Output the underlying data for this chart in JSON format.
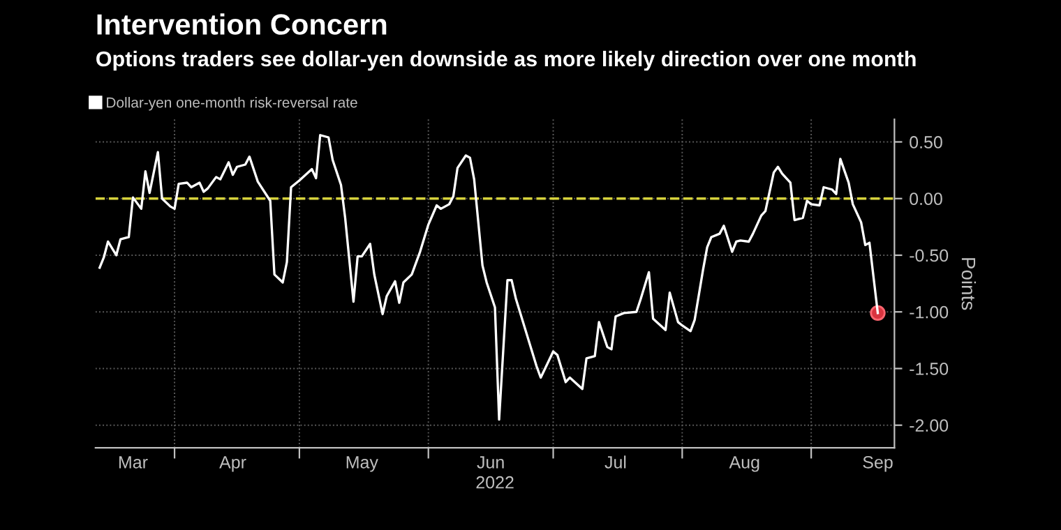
{
  "chart_data": {
    "type": "line",
    "title": "Intervention Concern",
    "subtitle": "Options traders see dollar-yen downside as more likely direction over one month",
    "xlabel": "2022",
    "ylabel": "Points",
    "x": [
      "2022-03-14",
      "2022-03-15",
      "2022-03-16",
      "2022-03-18",
      "2022-03-19",
      "2022-03-21",
      "2022-03-22",
      "2022-03-24",
      "2022-03-25",
      "2022-03-26",
      "2022-03-28",
      "2022-03-29",
      "2022-03-31",
      "2022-04-01",
      "2022-04-02",
      "2022-04-04",
      "2022-04-05",
      "2022-04-07",
      "2022-04-08",
      "2022-04-09",
      "2022-04-11",
      "2022-04-12",
      "2022-04-14",
      "2022-04-15",
      "2022-04-16",
      "2022-04-18",
      "2022-04-19",
      "2022-04-21",
      "2022-04-24",
      "2022-04-25",
      "2022-04-27",
      "2022-04-28",
      "2022-04-29",
      "2022-05-01",
      "2022-05-04",
      "2022-05-05",
      "2022-05-06",
      "2022-05-08",
      "2022-05-09",
      "2022-05-11",
      "2022-05-12",
      "2022-05-14",
      "2022-05-15",
      "2022-05-16",
      "2022-05-18",
      "2022-05-19",
      "2022-05-21",
      "2022-05-22",
      "2022-05-24",
      "2022-05-25",
      "2022-05-26",
      "2022-05-28",
      "2022-05-30",
      "2022-06-01",
      "2022-06-03",
      "2022-06-04",
      "2022-06-06",
      "2022-06-07",
      "2022-06-08",
      "2022-06-10",
      "2022-06-11",
      "2022-06-12",
      "2022-06-14",
      "2022-06-15",
      "2022-06-17",
      "2022-06-18",
      "2022-06-20",
      "2022-06-21",
      "2022-06-22",
      "2022-06-27",
      "2022-06-28",
      "2022-07-01",
      "2022-07-02",
      "2022-07-04",
      "2022-07-05",
      "2022-07-08",
      "2022-07-09",
      "2022-07-11",
      "2022-07-12",
      "2022-07-14",
      "2022-07-15",
      "2022-07-16",
      "2022-07-18",
      "2022-07-21",
      "2022-07-22",
      "2022-07-24",
      "2022-07-25",
      "2022-07-28",
      "2022-07-29",
      "2022-07-31",
      "2022-08-01",
      "2022-08-03",
      "2022-08-04",
      "2022-08-06",
      "2022-08-07",
      "2022-08-08",
      "2022-08-10",
      "2022-08-11",
      "2022-08-13",
      "2022-08-14",
      "2022-08-15",
      "2022-08-17",
      "2022-08-18",
      "2022-08-20",
      "2022-08-21",
      "2022-08-23",
      "2022-08-24",
      "2022-08-25",
      "2022-08-27",
      "2022-08-28",
      "2022-08-30",
      "2022-08-31",
      "2022-09-01",
      "2022-09-03",
      "2022-09-04",
      "2022-09-06",
      "2022-09-07",
      "2022-09-08",
      "2022-09-10",
      "2022-09-11",
      "2022-09-13",
      "2022-09-14",
      "2022-09-15",
      "2022-09-17"
    ],
    "series": [
      {
        "name": "Dollar-yen one-month risk-reversal rate",
        "color": "#ffffff",
        "values": [
          -0.61,
          -0.52,
          -0.38,
          -0.5,
          -0.36,
          -0.34,
          0.01,
          -0.09,
          0.24,
          0.05,
          0.41,
          0.0,
          -0.07,
          -0.09,
          0.13,
          0.14,
          0.1,
          0.14,
          0.06,
          0.09,
          0.19,
          0.17,
          0.32,
          0.21,
          0.28,
          0.3,
          0.37,
          0.15,
          -0.02,
          -0.67,
          -0.74,
          -0.56,
          0.1,
          0.16,
          0.26,
          0.18,
          0.56,
          0.54,
          0.34,
          0.12,
          -0.17,
          -0.91,
          -0.51,
          -0.51,
          -0.4,
          -0.67,
          -1.02,
          -0.86,
          -0.73,
          -0.92,
          -0.74,
          -0.67,
          -0.47,
          -0.23,
          -0.06,
          -0.09,
          -0.05,
          0.02,
          0.27,
          0.38,
          0.36,
          0.17,
          -0.59,
          -0.74,
          -0.96,
          -1.95,
          -0.72,
          -0.72,
          -0.88,
          -1.48,
          -1.58,
          -1.35,
          -1.38,
          -1.62,
          -1.58,
          -1.68,
          -1.41,
          -1.39,
          -1.09,
          -1.31,
          -1.33,
          -1.04,
          -1.01,
          -1.0,
          -0.89,
          -0.65,
          -1.06,
          -1.16,
          -0.83,
          -1.09,
          -1.12,
          -1.17,
          -1.07,
          -0.63,
          -0.43,
          -0.34,
          -0.31,
          -0.24,
          -0.47,
          -0.38,
          -0.37,
          -0.38,
          -0.31,
          -0.15,
          -0.11,
          0.23,
          0.28,
          0.22,
          0.14,
          -0.19,
          -0.17,
          -0.02,
          -0.05,
          -0.06,
          0.1,
          0.08,
          0.04,
          0.35,
          0.14,
          -0.05,
          -0.21,
          -0.41,
          -0.39,
          -1.01
        ]
      },
      {
        "type": "scatter",
        "marker": "circle",
        "color": "#d8343f",
        "x": [
          "2022-09-17"
        ],
        "values": [
          -1.01
        ]
      }
    ],
    "xlim": [
      "2022-03-13",
      "2022-09-21"
    ],
    "xticks": [
      {
        "value": "2022-04-01",
        "label": null
      },
      {
        "value": "2022-05-01",
        "label": null
      },
      {
        "value": "2022-06-01",
        "label": null
      },
      {
        "value": "2022-07-01",
        "label": null
      },
      {
        "value": "2022-08-01",
        "label": null
      },
      {
        "value": "2022-09-01",
        "label": null
      },
      {
        "value": "2022-03-22",
        "label": "Mar"
      },
      {
        "value": "2022-04-15",
        "label": "Apr"
      },
      {
        "value": "2022-05-16",
        "label": "May"
      },
      {
        "value": "2022-06-16",
        "label": "Jun"
      },
      {
        "value": "2022-07-16",
        "label": "Jul"
      },
      {
        "value": "2022-08-16",
        "label": "Aug"
      },
      {
        "value": "2022-09-17",
        "label": "Sep"
      }
    ],
    "ylim": [
      -2.2,
      0.7
    ],
    "yticks": [
      {
        "value": 0.5,
        "label": "0.50"
      },
      {
        "value": 0,
        "label": "0.00"
      },
      {
        "value": -0.5,
        "label": "-0.50"
      },
      {
        "value": -1,
        "label": "-1.00"
      },
      {
        "value": -1.5,
        "label": "-1.50"
      },
      {
        "value": -2,
        "label": "-2.00"
      }
    ],
    "ref_lines": [
      {
        "axis": "y",
        "value": 0,
        "color": "#d6d23c",
        "line_style": "dashed"
      }
    ],
    "grid": true,
    "legend": "top left"
  }
}
